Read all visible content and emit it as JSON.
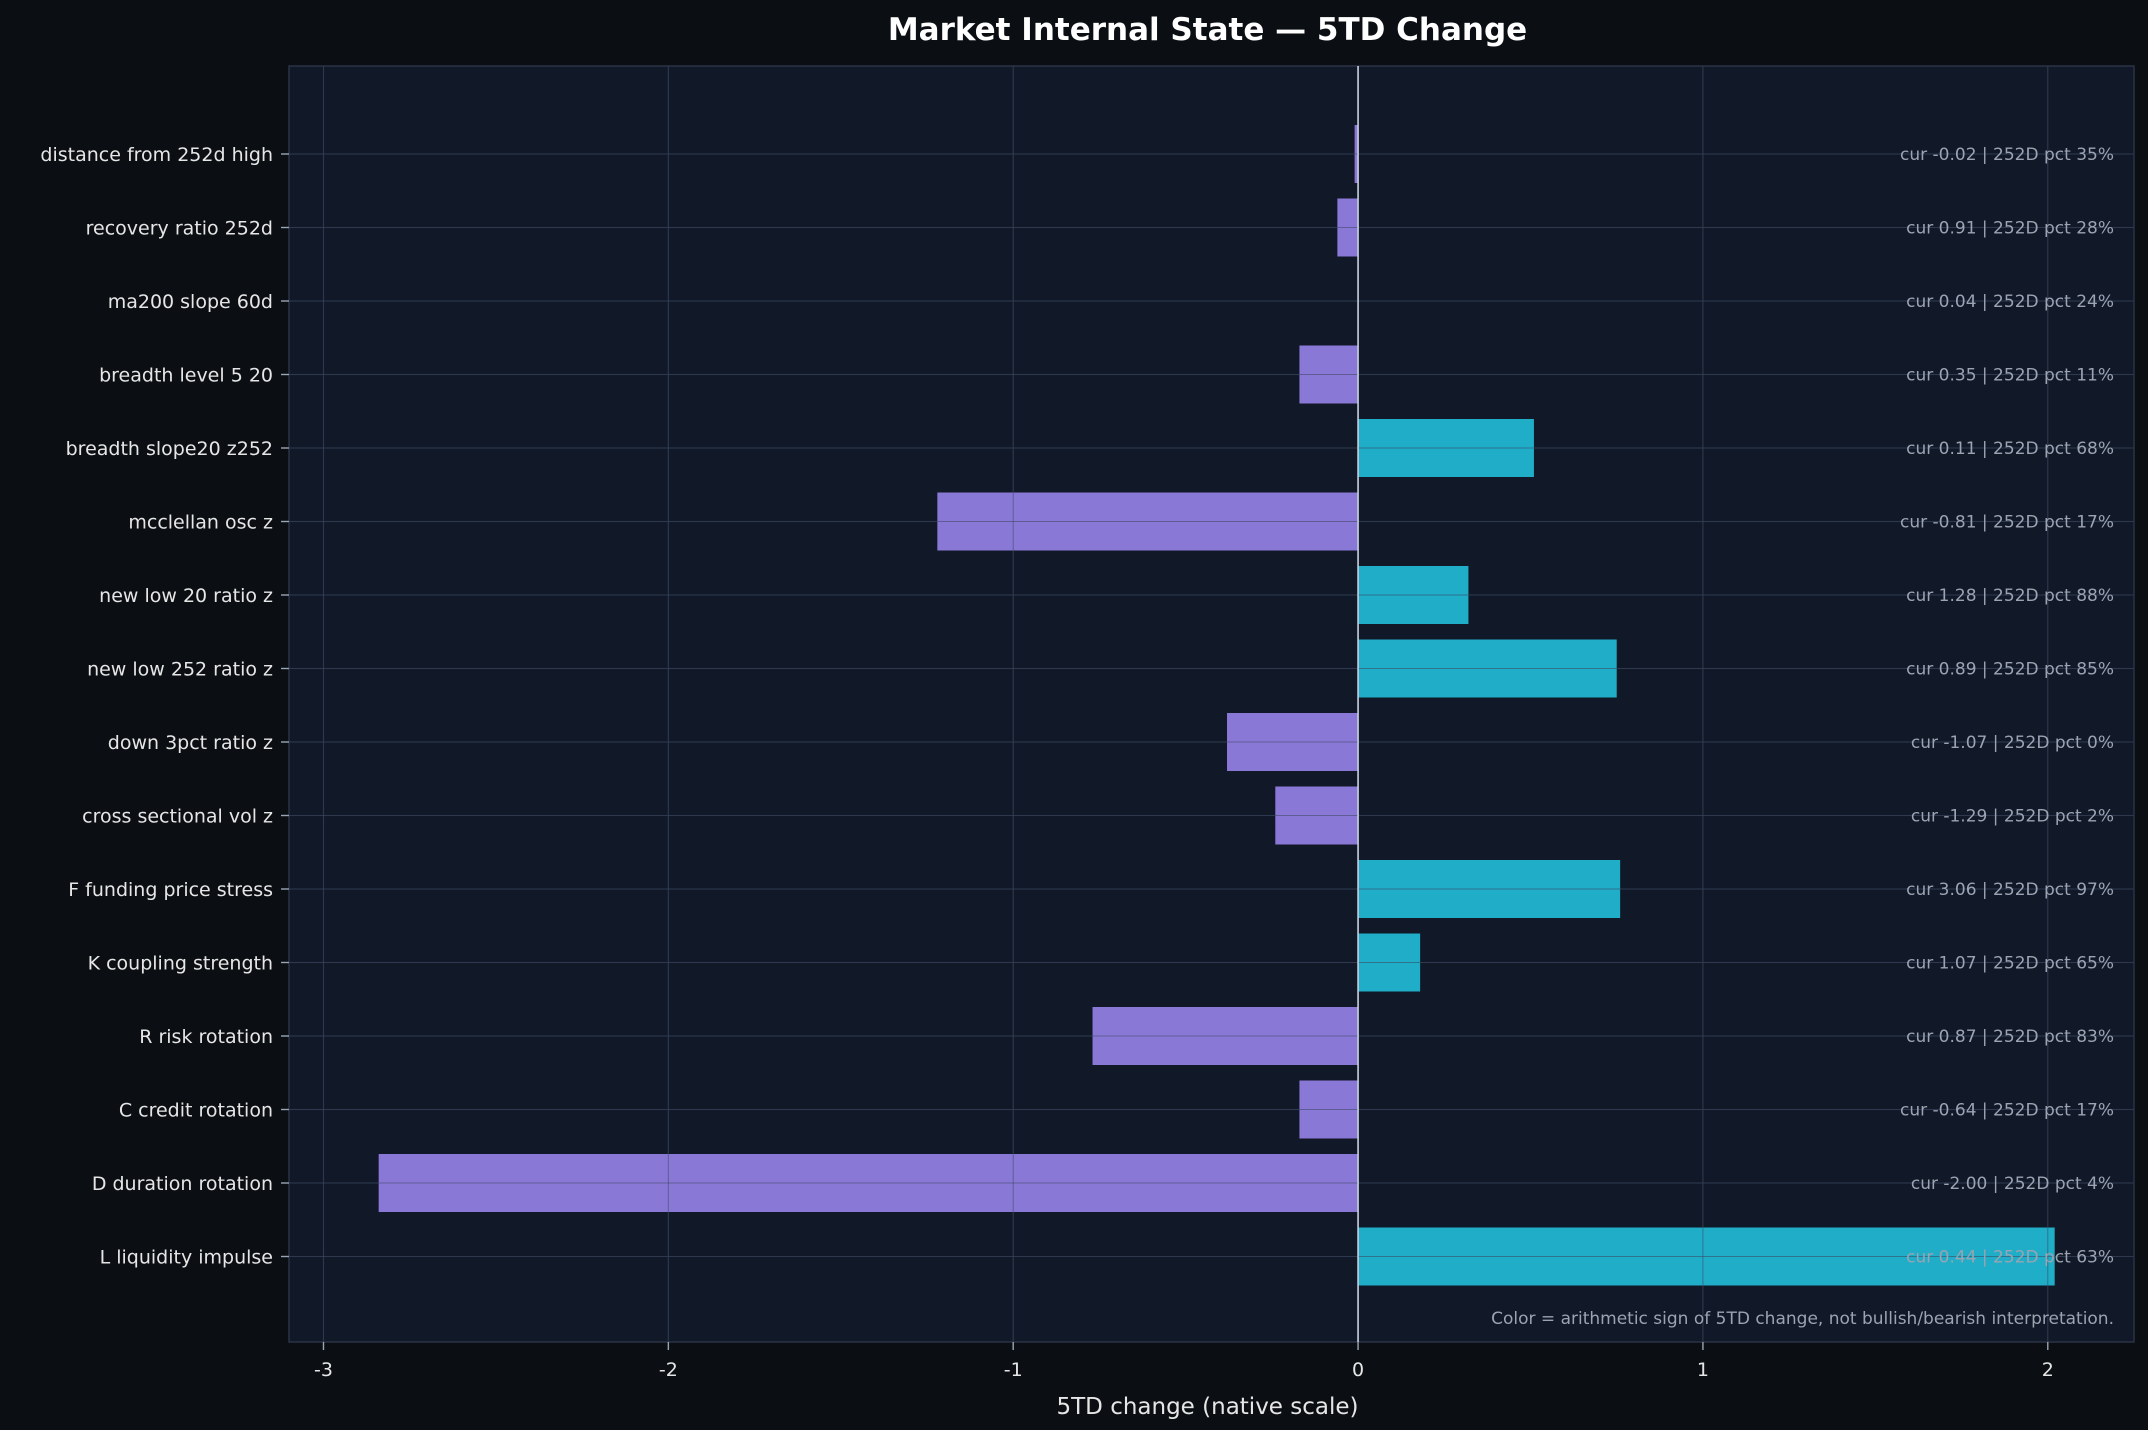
{
  "chart_data": {
    "type": "bar",
    "orientation": "horizontal",
    "title": "Market Internal State — 5TD Change",
    "xlabel": "5TD change (native scale)",
    "ylabel": "",
    "xlim": [
      -3.1,
      2.25
    ],
    "x_ticks": [
      -3,
      -2,
      -1,
      0,
      1,
      2
    ],
    "x_tick_labels": [
      "-3",
      "-2",
      "-1",
      "0",
      "1",
      "2"
    ],
    "grid": true,
    "footnote": "Color = arithmetic sign of 5TD change, not bullish/bearish interpretation.",
    "colors": {
      "figure_background": "#0b0f13",
      "axes_background": "#111827",
      "positive": "#1fadc8",
      "negative": "#8a78d6",
      "text": "#e6e6e6",
      "annotation_text": "#9aa4b2",
      "grid": "#1f2b3b",
      "zero_line": "#c9d1e0"
    },
    "categories": [
      "distance from 252d high",
      "recovery ratio 252d",
      "ma200 slope 60d",
      "breadth level 5 20",
      "breadth slope20 z252",
      "mcclellan osc z",
      "new low 20 ratio z",
      "new low 252 ratio z",
      "down 3pct ratio z",
      "cross sectional vol z",
      "F funding price stress",
      "K coupling strength",
      "R risk rotation",
      "C credit rotation",
      "D duration rotation",
      "L liquidity impulse"
    ],
    "values": [
      -0.01,
      -0.06,
      0.0,
      -0.17,
      0.51,
      -1.22,
      0.32,
      0.75,
      -0.38,
      -0.24,
      0.76,
      0.18,
      -0.77,
      -0.17,
      -2.84,
      2.02
    ],
    "annotations": [
      "cur -0.02 | 252D pct 35%",
      "cur 0.91 | 252D pct 28%",
      "cur 0.04 | 252D pct 24%",
      "cur 0.35 | 252D pct 11%",
      "cur 0.11 | 252D pct 68%",
      "cur -0.81 | 252D pct 17%",
      "cur 1.28 | 252D pct 88%",
      "cur 0.89 | 252D pct 85%",
      "cur -1.07 | 252D pct 0%",
      "cur -1.29 | 252D pct 2%",
      "cur 3.06 | 252D pct 97%",
      "cur 1.07 | 252D pct 65%",
      "cur 0.87 | 252D pct 83%",
      "cur -0.64 | 252D pct 17%",
      "cur -2.00 | 252D pct 4%",
      "cur 0.44 | 252D pct 63%"
    ]
  }
}
